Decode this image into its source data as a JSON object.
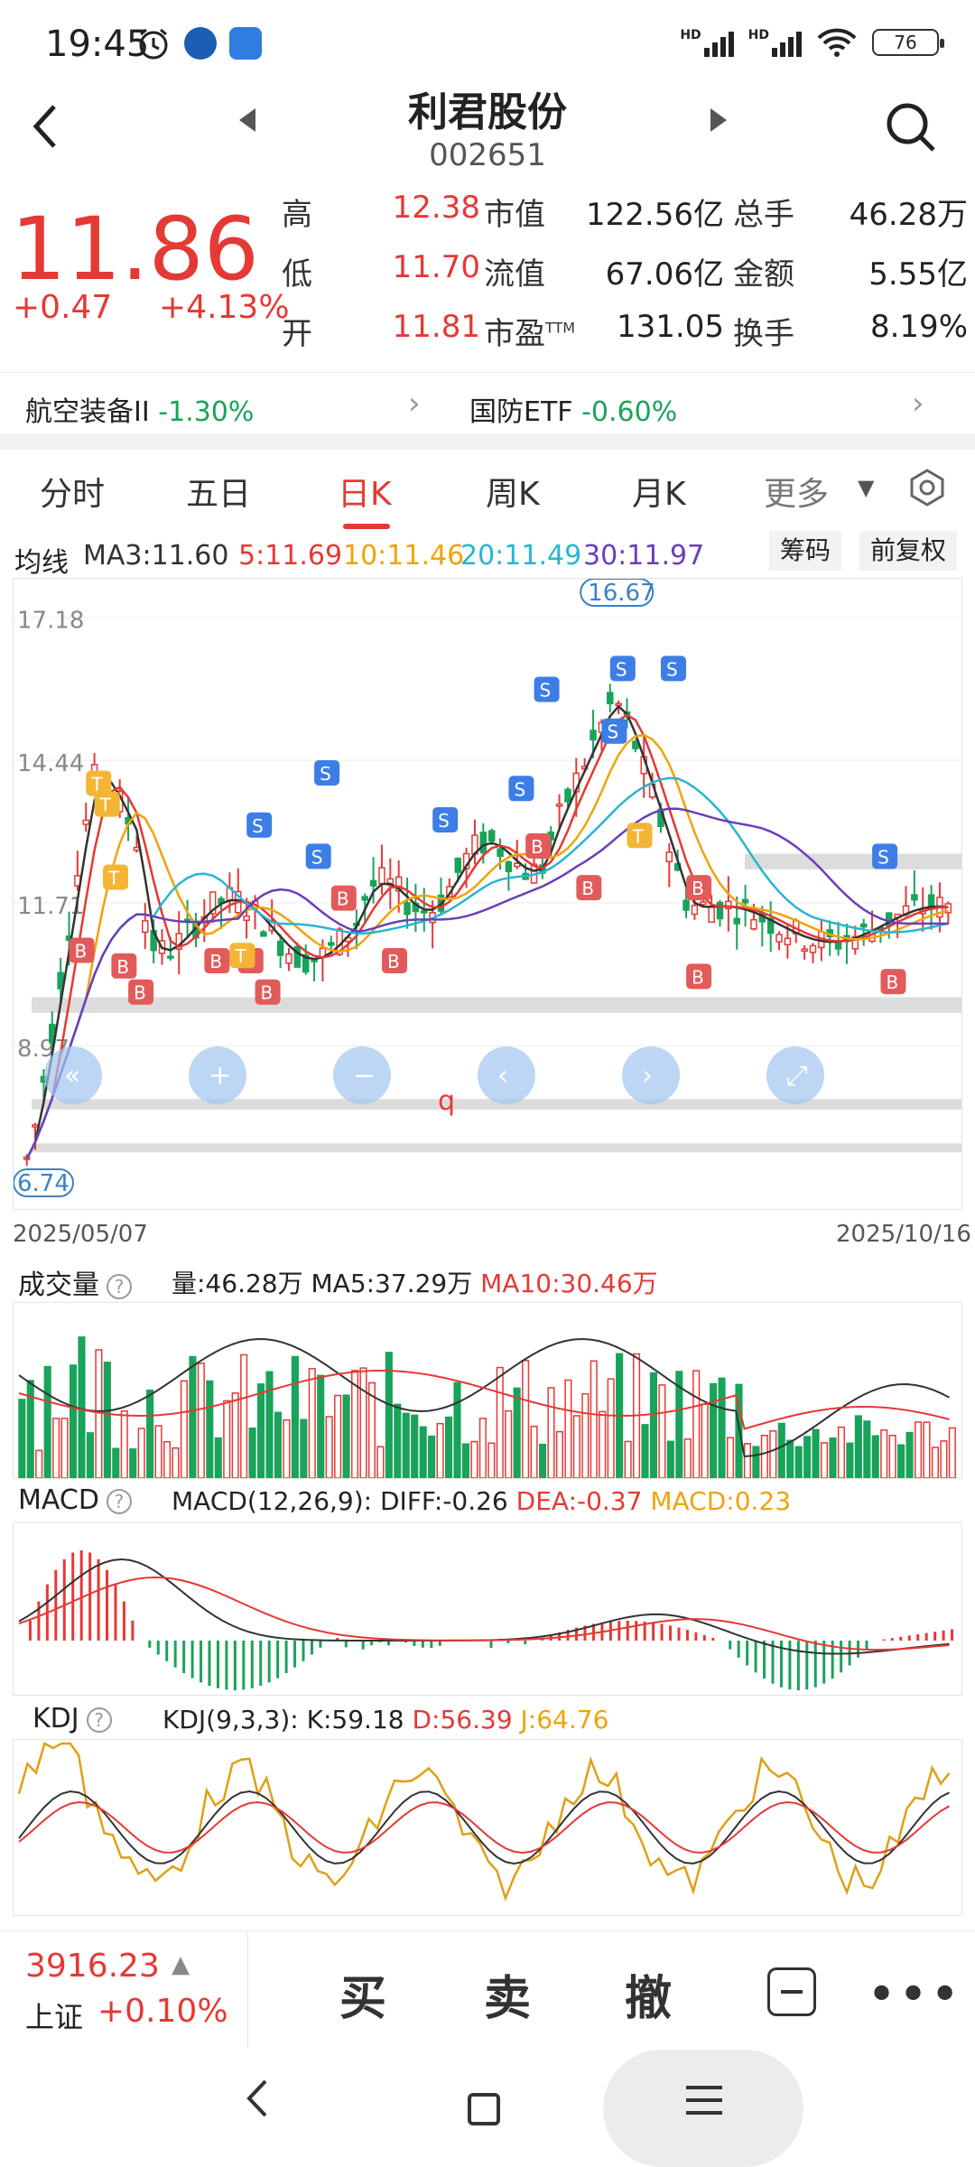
{
  "status": {
    "time": "19:45",
    "battery": "76",
    "net1": "HD",
    "net2": "HD"
  },
  "header": {
    "name": "利君股份",
    "code": "002651"
  },
  "quote": {
    "price": "11.86",
    "change": "+0.47",
    "change_pct": "+4.13%",
    "rows": [
      {
        "l1": "高",
        "v1": "12.38",
        "l2": "市值",
        "v2": "122.56亿",
        "l3": "总手",
        "v3": "46.28万"
      },
      {
        "l1": "低",
        "v1": "11.70",
        "l2": "流值",
        "v2": "67.06亿",
        "l3": "金额",
        "v3": "5.55亿"
      },
      {
        "l1": "开",
        "v1": "11.81",
        "l2": "市盈",
        "l2sup": "TTM",
        "v2": "131.05",
        "l3": "换手",
        "v3": "8.19%"
      }
    ]
  },
  "sectors": [
    {
      "name": "航空装备II",
      "pct": "-1.30%"
    },
    {
      "name": "国防ETF",
      "pct": "-0.60%"
    }
  ],
  "tabs": [
    "分时",
    "五日",
    "日K",
    "周K",
    "月K",
    "更多"
  ],
  "active_tab": "日K",
  "ma": {
    "label": "均线",
    "ma3": "MA3:11.60",
    "ma5": "5:11.69",
    "ma10": "10:11.46",
    "ma20": "20:11.49",
    "ma30": "30:11.97",
    "chips": "筹码",
    "adjust": "前复权"
  },
  "colors": {
    "up": "#e53935",
    "down": "#19a35b",
    "ma3": "#333333",
    "ma5": "#e53935",
    "ma10": "#f0a30a",
    "ma20": "#27b5d3",
    "ma30": "#6a3fb8"
  },
  "kline": {
    "y_ticks": [
      "17.18",
      "14.44",
      "11.71",
      "8.97"
    ],
    "high_label": "16.67",
    "low_label": "6.74",
    "start_date": "2025/05/07",
    "end_date": "2025/10/16",
    "zoom_controls": [
      "«",
      "+",
      "−",
      "‹",
      "›",
      "⤢"
    ],
    "overlay_char": "q",
    "signals": [
      "B",
      "S",
      "T"
    ]
  },
  "volume": {
    "label": "成交量",
    "vol": "量:46.28万",
    "ma5": "MA5:37.29万",
    "ma10": "MA10:30.46万"
  },
  "macd": {
    "label": "MACD",
    "params": "MACD(12,26,9):",
    "diff": "DIFF:-0.26",
    "dea": "DEA:-0.37",
    "macd": "MACD:0.23"
  },
  "kdj": {
    "label": "KDJ",
    "params": "KDJ(9,3,3):",
    "k": "K:59.18",
    "d": "D:56.39",
    "j": "J:64.76"
  },
  "help_mark": "?",
  "index": {
    "value": "3916.23",
    "name": "上证",
    "pct": "+0.10%"
  },
  "actions": {
    "buy": "买",
    "sell": "卖",
    "cancel": "撤"
  }
}
